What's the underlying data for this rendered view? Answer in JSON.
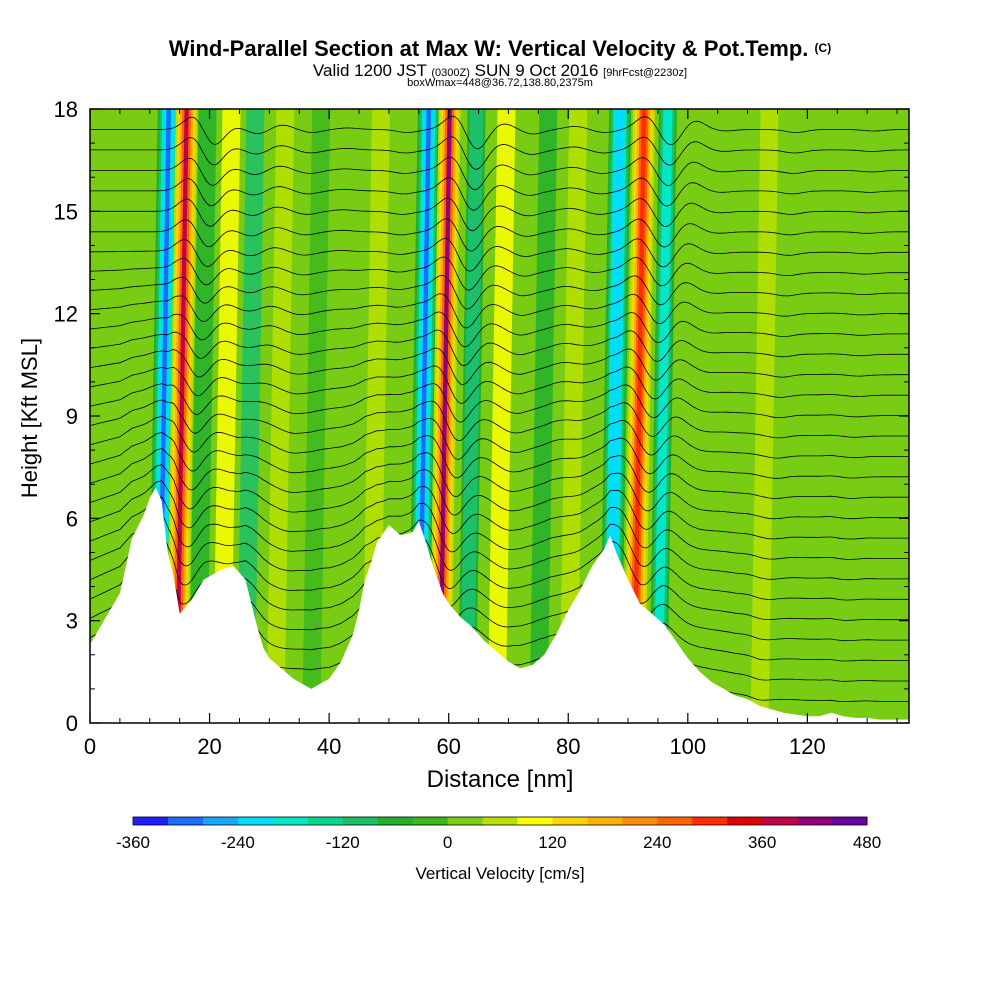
{
  "chart_data": {
    "type": "heatmap",
    "title": "Wind-Parallel Section at Max W: Vertical Velocity & Pot.Temp.",
    "title_mark": "(C)",
    "subtitle_main": "Valid 1200 JST",
    "subtitle_utc": "(0300Z)",
    "subtitle_date": "SUN 9 Oct 2016",
    "subtitle_forecast": "[9hrFcst@2230z]",
    "note": "boxWmax=448@36.72,138.80,2375m",
    "xlabel": "Distance [nm]",
    "ylabel": "Height [Kft MSL]",
    "xlim": [
      0,
      137
    ],
    "ylim": [
      0,
      18
    ],
    "x_ticks": [
      0,
      20,
      40,
      60,
      80,
      100,
      120
    ],
    "y_ticks": [
      0,
      3,
      6,
      9,
      12,
      15,
      18
    ],
    "grid": false,
    "colorbar": {
      "title": "Vertical Velocity [cm/s]",
      "placement": "bottom",
      "range": [
        -360,
        480
      ],
      "tick_labels": [
        -360,
        -240,
        -120,
        0,
        120,
        240,
        360,
        480
      ],
      "colors": [
        "#1f1fff",
        "#1a6dff",
        "#19a6ff",
        "#00dcff",
        "#00e8c8",
        "#00d890",
        "#1cc06a",
        "#22b02a",
        "#3cb81c",
        "#78cc14",
        "#b8e000",
        "#ffff00",
        "#ffd400",
        "#ffb000",
        "#ff8c00",
        "#ff6400",
        "#ff2c00",
        "#e00000",
        "#c0004a",
        "#900078",
        "#6a00a0"
      ]
    },
    "terrain": {
      "x": [
        0,
        1,
        3,
        5,
        6,
        7,
        9,
        10,
        11,
        12,
        13,
        14,
        15,
        16,
        17,
        18,
        19,
        20,
        22,
        24,
        25,
        26,
        27,
        28,
        29,
        30,
        32,
        34,
        36,
        37,
        38,
        40,
        42,
        44,
        45,
        46,
        47,
        48,
        50,
        52,
        54,
        55,
        56,
        57,
        58,
        59,
        60,
        62,
        64,
        66,
        68,
        70,
        72,
        74,
        76,
        78,
        80,
        82,
        84,
        86,
        87,
        88,
        90,
        92,
        94,
        96,
        98,
        100,
        102,
        104,
        106,
        108,
        110,
        112,
        114,
        116,
        118,
        120,
        122,
        124,
        126,
        128,
        130,
        132,
        134,
        137
      ],
      "height_kft": [
        2.3,
        2.6,
        3.2,
        3.8,
        4.6,
        5.4,
        6.1,
        6.6,
        6.9,
        6.5,
        5.0,
        4.3,
        3.2,
        3.4,
        3.6,
        3.9,
        4.2,
        4.3,
        4.5,
        4.6,
        4.4,
        4.2,
        3.5,
        2.8,
        2.2,
        1.9,
        1.6,
        1.3,
        1.1,
        1.0,
        1.1,
        1.3,
        1.8,
        2.6,
        3.3,
        4.2,
        4.7,
        5.3,
        5.8,
        5.5,
        5.6,
        5.9,
        5.4,
        4.8,
        4.3,
        3.8,
        3.5,
        3.1,
        2.8,
        2.4,
        2.1,
        1.8,
        1.6,
        1.7,
        2.0,
        2.6,
        3.3,
        3.9,
        4.6,
        5.1,
        5.5,
        5.0,
        4.2,
        3.5,
        3.2,
        2.9,
        2.4,
        1.9,
        1.5,
        1.2,
        1.0,
        0.8,
        0.7,
        0.5,
        0.4,
        0.3,
        0.25,
        0.2,
        0.2,
        0.3,
        0.2,
        0.15,
        0.15,
        0.1,
        0.1,
        0.1
      ]
    },
    "bands": [
      {
        "x": 11.5,
        "w_cms": -300
      },
      {
        "x": 14.5,
        "w_cms": 360
      },
      {
        "x": 18,
        "w_cms": -60
      },
      {
        "x": 22,
        "w_cms": 90
      },
      {
        "x": 26,
        "w_cms": -90
      },
      {
        "x": 31,
        "w_cms": 60
      },
      {
        "x": 37,
        "w_cms": -30
      },
      {
        "x": 47,
        "w_cms": 60
      },
      {
        "x": 55,
        "w_cms": -300
      },
      {
        "x": 58.5,
        "w_cms": 420
      },
      {
        "x": 63,
        "w_cms": -120
      },
      {
        "x": 68,
        "w_cms": 90
      },
      {
        "x": 75,
        "w_cms": -60
      },
      {
        "x": 80,
        "w_cms": 60
      },
      {
        "x": 87,
        "w_cms": -270
      },
      {
        "x": 91,
        "w_cms": 330
      },
      {
        "x": 95,
        "w_cms": -180
      },
      {
        "x": 100,
        "w_cms": 30
      },
      {
        "x": 112,
        "w_cms": 60
      },
      {
        "x": 125,
        "w_cms": 30
      }
    ]
  }
}
